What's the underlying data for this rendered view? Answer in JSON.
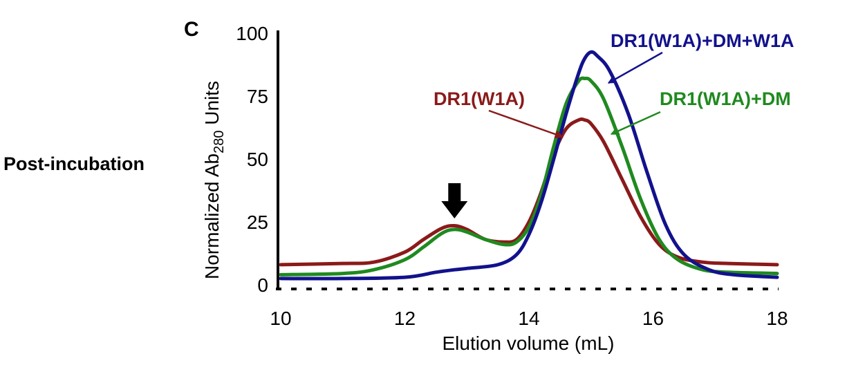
{
  "panel_label": "C",
  "row_label": "Post-incubation",
  "chart_data": {
    "type": "line",
    "title": "",
    "xlabel": "Elution volume (mL)",
    "ylabel_main": "Normalized Ab",
    "ylabel_sub": "280",
    "ylabel_suffix": " Units",
    "xlim": [
      10,
      18
    ],
    "ylim": [
      0,
      100
    ],
    "xticks": [
      10,
      12,
      14,
      16,
      18
    ],
    "yticks": [
      0,
      25,
      50,
      75,
      100
    ],
    "grid": false,
    "marker_arrow_x": 12.8,
    "series": [
      {
        "name": "DR1(W1A)",
        "color": "#8b1a1a",
        "x": [
          10,
          11,
          11.5,
          12,
          12.3,
          12.6,
          12.8,
          13.0,
          13.3,
          13.6,
          13.8,
          14.0,
          14.2,
          14.4,
          14.6,
          14.8,
          14.9,
          15.0,
          15.2,
          15.5,
          15.8,
          16.1,
          16.4,
          16.8,
          17.2,
          18
        ],
        "y": [
          8,
          8.5,
          9,
          13,
          18,
          22.5,
          23.5,
          22,
          18,
          17,
          18,
          25,
          37,
          52,
          62,
          65.5,
          65.5,
          64,
          57,
          42,
          27,
          16,
          11,
          9,
          8.5,
          8
        ]
      },
      {
        "name": "DR1(W1A)+DM",
        "color": "#1f8a1f",
        "x": [
          10,
          11,
          11.5,
          12,
          12.3,
          12.6,
          12.8,
          13.0,
          13.3,
          13.6,
          13.8,
          14.0,
          14.2,
          14.4,
          14.6,
          14.8,
          14.9,
          15.0,
          15.2,
          15.5,
          15.8,
          16.1,
          16.4,
          16.8,
          17.2,
          18
        ],
        "y": [
          4,
          4.5,
          6,
          10,
          15,
          20.5,
          22,
          21,
          18,
          16,
          17,
          23,
          36,
          55,
          72,
          81,
          82,
          81,
          74,
          55,
          34,
          18,
          10,
          6,
          5,
          4.5
        ]
      },
      {
        "name": "DR1(W1A)+DM+W1A",
        "color": "#12128c",
        "x": [
          10,
          11,
          12,
          12.5,
          12.8,
          13.0,
          13.5,
          13.8,
          14.0,
          14.2,
          14.4,
          14.6,
          14.8,
          14.9,
          15.0,
          15.1,
          15.3,
          15.6,
          15.9,
          16.2,
          16.5,
          16.9,
          17.3,
          18
        ],
        "y": [
          2.5,
          2.5,
          3,
          5,
          6,
          6.5,
          8,
          12,
          20,
          33,
          50,
          68,
          84,
          90,
          92.5,
          91,
          85,
          68,
          45,
          24,
          12,
          6,
          4,
          3
        ]
      }
    ],
    "annotations": [
      {
        "text": "DR1(W1A)",
        "color": "#8b1a1a"
      },
      {
        "text": "DR1(W1A)+DM",
        "color": "#1f8a1f"
      },
      {
        "text": "DR1(W1A)+DM+W1A",
        "color": "#12128c"
      }
    ]
  }
}
